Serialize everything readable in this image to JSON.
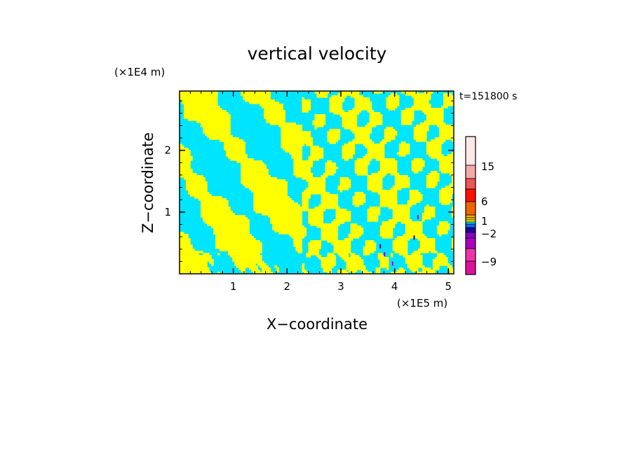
{
  "chart_data": {
    "type": "heatmap",
    "title": "vertical velocity",
    "xlabel": "X−coordinate",
    "ylabel": "Z−coordinate",
    "x_unit": "(×1E5 m)",
    "y_unit": "(×1E4 m)",
    "time_label": "t=151800 s",
    "xlim": [
      0,
      5.1
    ],
    "ylim": [
      0,
      2.96
    ],
    "x_ticks": [
      "1",
      "2",
      "3",
      "4",
      "5"
    ],
    "y_ticks": [
      "1",
      "2"
    ],
    "x_tick_values": [
      1,
      2,
      3,
      4,
      5
    ],
    "y_tick_values": [
      1,
      2
    ],
    "colorbar": {
      "tick_labels": [
        "15",
        "6",
        "1",
        "−2",
        "−9"
      ],
      "levels": [
        {
          "color": "#dd1199"
        },
        {
          "color": "#ee33aa"
        },
        {
          "color": "#aa00bb"
        },
        {
          "color": "#8800cc"
        },
        {
          "color": "#220099"
        },
        {
          "color": "#1166ff"
        },
        {
          "color": "#00e5ff"
        },
        {
          "color": "#ffff00"
        },
        {
          "color": "#ffdd00"
        },
        {
          "color": "#ffaa00"
        },
        {
          "color": "#ee6600"
        },
        {
          "color": "#ff1100"
        },
        {
          "color": "#ee5555"
        },
        {
          "color": "#f5aaaa"
        },
        {
          "color": "#fde8e8"
        }
      ]
    },
    "field_colors": {
      "positive": "#ffff00",
      "negative": "#00e5ff"
    }
  }
}
